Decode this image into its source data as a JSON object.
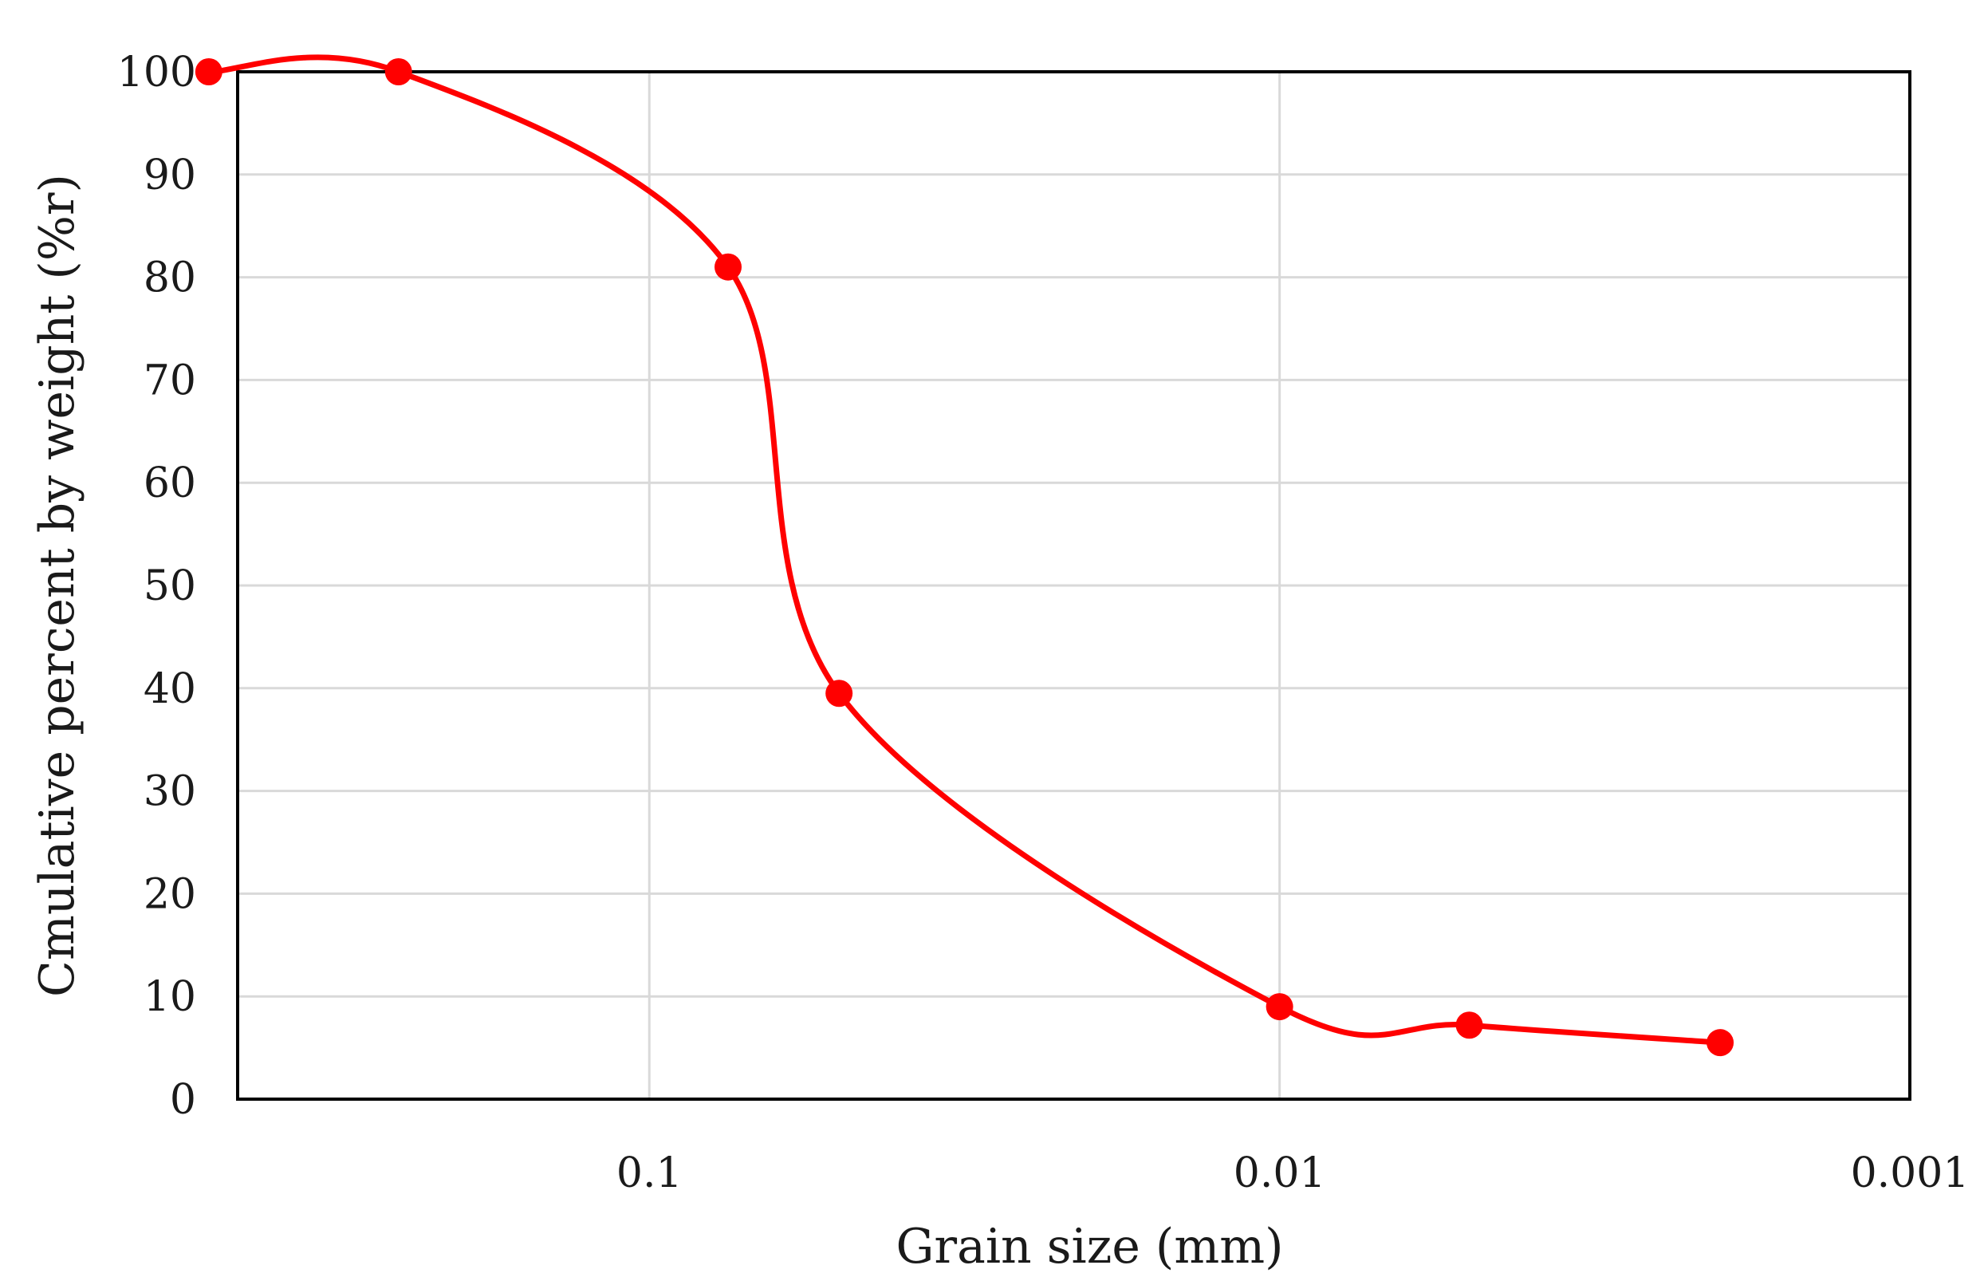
{
  "chart_data": {
    "type": "line",
    "title": "",
    "xlabel": "Grain size (mm)",
    "ylabel": "Cmulative percent by weight (%r)",
    "x_scale": "log",
    "x_reversed": true,
    "xlim": [
      0.45,
      0.001
    ],
    "ylim": [
      0,
      100
    ],
    "grid": true,
    "legend": "none",
    "line_color": "#ff0000",
    "marker_color": "#ff0000",
    "x_ticks": [
      {
        "value": 0.1,
        "label": "0.1"
      },
      {
        "value": 0.01,
        "label": "0.01"
      },
      {
        "value": 0.001,
        "label": "0.001"
      }
    ],
    "y_ticks": [
      {
        "value": 0,
        "label": "0"
      },
      {
        "value": 10,
        "label": "10"
      },
      {
        "value": 20,
        "label": "20"
      },
      {
        "value": 30,
        "label": "30"
      },
      {
        "value": 40,
        "label": "40"
      },
      {
        "value": 50,
        "label": "50"
      },
      {
        "value": 60,
        "label": "60"
      },
      {
        "value": 70,
        "label": "70"
      },
      {
        "value": 80,
        "label": "80"
      },
      {
        "value": 90,
        "label": "90"
      },
      {
        "value": 100,
        "label": "100"
      }
    ],
    "series": [
      {
        "x": [
          0.5,
          0.25,
          0.075,
          0.05,
          0.01,
          0.005,
          0.002
        ],
        "y": [
          100,
          100,
          81,
          39.5,
          9,
          7.2,
          5.5
        ]
      }
    ]
  }
}
